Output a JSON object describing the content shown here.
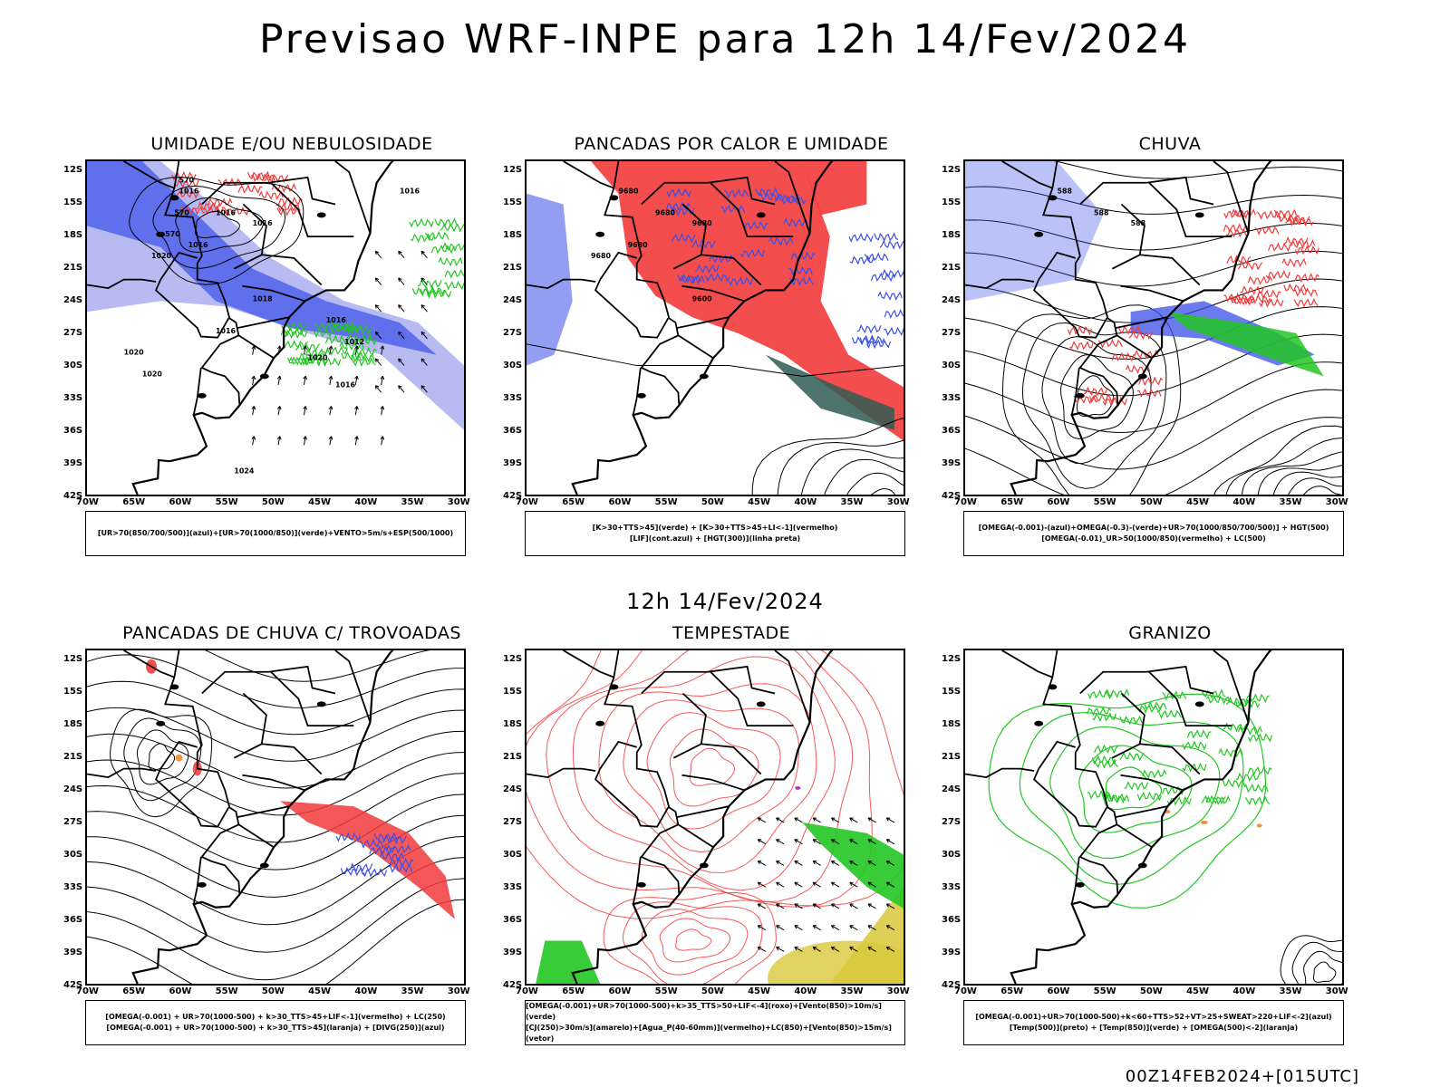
{
  "title": "Previsao WRF-INPE  para 12h 14/Fev/2024",
  "mid_title": "12h 14/Fev/2024",
  "footer": "00Z14FEB2024+[015UTC]",
  "lat_labels": [
    "12S",
    "15S",
    "18S",
    "21S",
    "24S",
    "27S",
    "30S",
    "33S",
    "36S",
    "39S",
    "42S"
  ],
  "lon_labels": [
    "70W",
    "65W",
    "60W",
    "55W",
    "50W",
    "45W",
    "40W",
    "35W",
    "30W"
  ],
  "panels": [
    {
      "title": "UMIDADE E/OU NEBULOSIDADE",
      "legend": [
        "[UR>70(850/700/500)](azul)+[UR>70(1000/850)](verde)+VENTO>5m/s+ESP(500/1000)"
      ],
      "labels": [
        "1016",
        "1016",
        "1016",
        "1016",
        "1020",
        "1018",
        "1016",
        "1016",
        "1012",
        "1020",
        "1016",
        "1020",
        "1024",
        "1016",
        "570",
        "570",
        "570",
        "1020"
      ]
    },
    {
      "title": "PANCADAS POR CALOR E UMIDADE",
      "legend": [
        "[K>30+TTS>45](verde) + [K>30+TTS>45+LI<-1](vermelho)",
        "[LIF](cont.azul) + [HGT(300)](linha preta)"
      ],
      "labels": [
        "9680",
        "9680",
        "9680",
        "9680",
        "9680",
        "9600"
      ]
    },
    {
      "title": "CHUVA",
      "legend": [
        "[OMEGA(-0.001)-(azul)+OMEGA(-0.3)-(verde)+UR>70(1000/850/700/500)] + HGT(500)",
        "[OMEGA(-0.01)_UR>50(1000/850)(vermelho) + LC(500)"
      ],
      "labels": [
        "588",
        "588",
        "588"
      ]
    },
    {
      "title": "PANCADAS DE CHUVA C/ TROVOADAS",
      "legend": [
        "[OMEGA(-0.001) + UR>70(1000-500) + k>30_TTS>45+LIF<-1](vermelho) + LC(250)",
        "[OMEGA(-0.001) + UR>70(1000-500) + k>30_TTS>45](laranja) + [DIVG(250)](azul)"
      ],
      "labels": []
    },
    {
      "title": "TEMPESTADE",
      "legend": [
        "[OMEGA(-0.001)+UR>70(1000-500)+k>35_TTS>50+LIF<-4](roxo)+[Vento(850)>10m/s](verde)",
        "[CJ(250)>30m/s](amarelo)+[Agua_P(40-60mm)](vermelho)+LC(850)+[Vento(850)>15m/s](vetor)"
      ],
      "labels": []
    },
    {
      "title": "GRANIZO",
      "legend": [
        "[OMEGA(-0.001)+UR>70(1000-500)+k<60+TTS>52+VT>25+SWEAT>220+LIF<-2](azul)",
        "[Temp(500)](preto) + [Temp(850)](verde) + [OMEGA(500)<-2](laranja)"
      ],
      "labels": []
    }
  ],
  "colors": {
    "blue": "#3a4fe8",
    "light_blue": "#9fa4ee",
    "green": "#22c622",
    "red": "#f23a3a",
    "orange": "#ee8a2a",
    "yellow": "#d8c83a",
    "dark_teal": "#2f5a52",
    "purple": "#a020c0"
  }
}
